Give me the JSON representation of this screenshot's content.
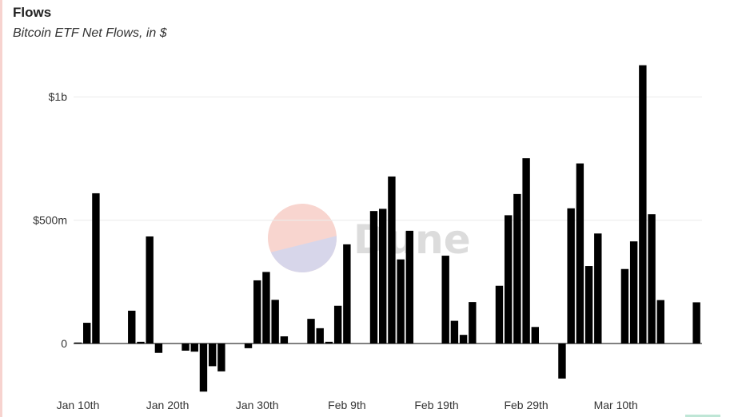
{
  "header": {
    "title": "Flows",
    "subtitle": "Bitcoin ETF Net Flows, in $"
  },
  "watermark": {
    "text": "Dune",
    "colors": {
      "top": "#f8d5cf",
      "bottom": "#d7d6ea"
    }
  },
  "colors": {
    "bar": "#000000",
    "grid": "#ececec",
    "border_accent": "#f7d3cf"
  },
  "chart_data": {
    "type": "bar",
    "title": "Flows",
    "subtitle": "Bitcoin ETF Net Flows, in $",
    "xlabel": "",
    "ylabel": "",
    "ylim": [
      -200,
      1150
    ],
    "y_unit": "million USD",
    "y_ticks": [
      {
        "value": 0,
        "label": "0"
      },
      {
        "value": 500,
        "label": "$500m"
      },
      {
        "value": 1000,
        "label": "$1b"
      }
    ],
    "x_ticks": [
      {
        "date": "2024-01-10",
        "label": "Jan 10th"
      },
      {
        "date": "2024-01-20",
        "label": "Jan 20th"
      },
      {
        "date": "2024-01-30",
        "label": "Jan 30th"
      },
      {
        "date": "2024-02-09",
        "label": "Feb 9th"
      },
      {
        "date": "2024-02-19",
        "label": "Feb 19th"
      },
      {
        "date": "2024-02-29",
        "label": "Feb 29th"
      },
      {
        "date": "2024-03-10",
        "label": "Mar 10th"
      }
    ],
    "x_range": [
      "2024-01-10",
      "2024-03-20"
    ],
    "grid": true,
    "legend": "none",
    "points": [
      {
        "date": "2024-01-10",
        "value": 4
      },
      {
        "date": "2024-01-11",
        "value": 84
      },
      {
        "date": "2024-01-12",
        "value": 609
      },
      {
        "date": "2024-01-16",
        "value": 133
      },
      {
        "date": "2024-01-17",
        "value": 7
      },
      {
        "date": "2024-01-18",
        "value": 434
      },
      {
        "date": "2024-01-19",
        "value": -38
      },
      {
        "date": "2024-01-22",
        "value": -29
      },
      {
        "date": "2024-01-23",
        "value": -33
      },
      {
        "date": "2024-01-24",
        "value": -195
      },
      {
        "date": "2024-01-25",
        "value": -92
      },
      {
        "date": "2024-01-26",
        "value": -113
      },
      {
        "date": "2024-01-29",
        "value": -19
      },
      {
        "date": "2024-01-30",
        "value": 256
      },
      {
        "date": "2024-01-31",
        "value": 290
      },
      {
        "date": "2024-02-01",
        "value": 177
      },
      {
        "date": "2024-02-02",
        "value": 29
      },
      {
        "date": "2024-02-05",
        "value": 100
      },
      {
        "date": "2024-02-06",
        "value": 62
      },
      {
        "date": "2024-02-07",
        "value": 7
      },
      {
        "date": "2024-02-08",
        "value": 153
      },
      {
        "date": "2024-02-09",
        "value": 402
      },
      {
        "date": "2024-02-12",
        "value": 537
      },
      {
        "date": "2024-02-13",
        "value": 546
      },
      {
        "date": "2024-02-14",
        "value": 677
      },
      {
        "date": "2024-02-15",
        "value": 341
      },
      {
        "date": "2024-02-16",
        "value": 457
      },
      {
        "date": "2024-02-20",
        "value": 356
      },
      {
        "date": "2024-02-21",
        "value": 92
      },
      {
        "date": "2024-02-22",
        "value": 35
      },
      {
        "date": "2024-02-23",
        "value": 168
      },
      {
        "date": "2024-02-26",
        "value": 234
      },
      {
        "date": "2024-02-27",
        "value": 520
      },
      {
        "date": "2024-02-28",
        "value": 606
      },
      {
        "date": "2024-02-29",
        "value": 751
      },
      {
        "date": "2024-03-01",
        "value": 67
      },
      {
        "date": "2024-03-04",
        "value": -142
      },
      {
        "date": "2024-03-05",
        "value": 548
      },
      {
        "date": "2024-03-06",
        "value": 730
      },
      {
        "date": "2024-03-07",
        "value": 314
      },
      {
        "date": "2024-03-08",
        "value": 446
      },
      {
        "date": "2024-03-11",
        "value": 302
      },
      {
        "date": "2024-03-12",
        "value": 414
      },
      {
        "date": "2024-03-13",
        "value": 1128
      },
      {
        "date": "2024-03-14",
        "value": 524
      },
      {
        "date": "2024-03-15",
        "value": 176
      },
      {
        "date": "2024-03-19",
        "value": 167
      }
    ]
  }
}
